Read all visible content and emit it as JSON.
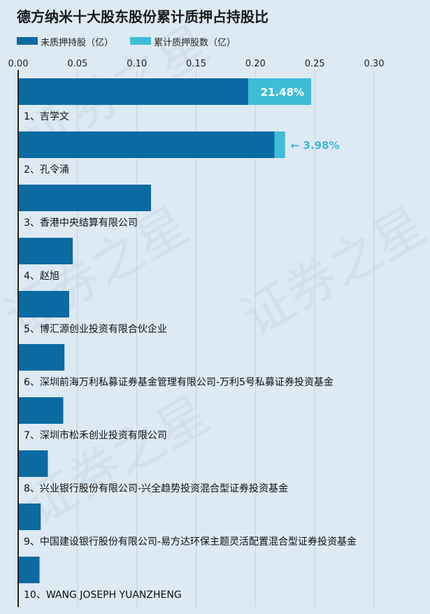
{
  "chart_data": {
    "type": "bar",
    "orientation": "horizontal",
    "stacked": true,
    "title": "德方纳米十大股东股份累计质押占持股比",
    "xlim": [
      0,
      0.3
    ],
    "x_ticks": [
      "0.00",
      "0.05",
      "0.10",
      "0.15",
      "0.20",
      "0.25",
      "0.30"
    ],
    "categories": [
      "1、吉学文",
      "2、孔令涌",
      "3、香港中央结算有限公司",
      "4、赵旭",
      "5、博汇源创业投资有限合伙企业",
      "6、深圳前海万利私募证券基金管理有限公司-万利5号私募证券投资基金",
      "7、深圳市松禾创业投资有限公司",
      "8、兴业银行股份有限公司-兴全趋势投资混合型证券投资基金",
      "9、中国建设银行股份有限公司-易方达环保主题灵活配置混合型证券投资基金",
      "10、WANG JOSEPH YUANZHENG"
    ],
    "series": [
      {
        "name": "未质押持股（亿）",
        "color": "#0a6aa1",
        "values": [
          0.194,
          0.216,
          0.112,
          0.046,
          0.043,
          0.039,
          0.038,
          0.025,
          0.019,
          0.018
        ]
      },
      {
        "name": "累计质押股数（亿）",
        "color": "#3fbdd6",
        "values": [
          0.053,
          0.009,
          0,
          0,
          0,
          0,
          0,
          0,
          0,
          0
        ]
      }
    ],
    "pct_labels": [
      "21.48%",
      "3.98%",
      "",
      "",
      "",
      "",
      "",
      "",
      "",
      ""
    ],
    "pct_label_style": [
      "inside",
      "outside-arrow",
      "",
      "",
      "",
      "",
      "",
      "",
      "",
      ""
    ]
  },
  "watermark": "证券之星"
}
